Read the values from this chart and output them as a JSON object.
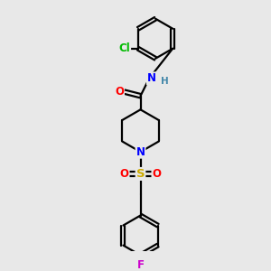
{
  "background_color": "#e8e8e8",
  "bond_color": "#000000",
  "atom_colors": {
    "O": "#ff0000",
    "N": "#0000ff",
    "S": "#ccaa00",
    "Cl": "#00bb00",
    "F": "#cc00cc",
    "H": "#4488aa",
    "C": "#000000"
  },
  "figsize": [
    3.0,
    3.0
  ],
  "dpi": 100,
  "xlim": [
    0,
    10
  ],
  "ylim": [
    0,
    10
  ]
}
